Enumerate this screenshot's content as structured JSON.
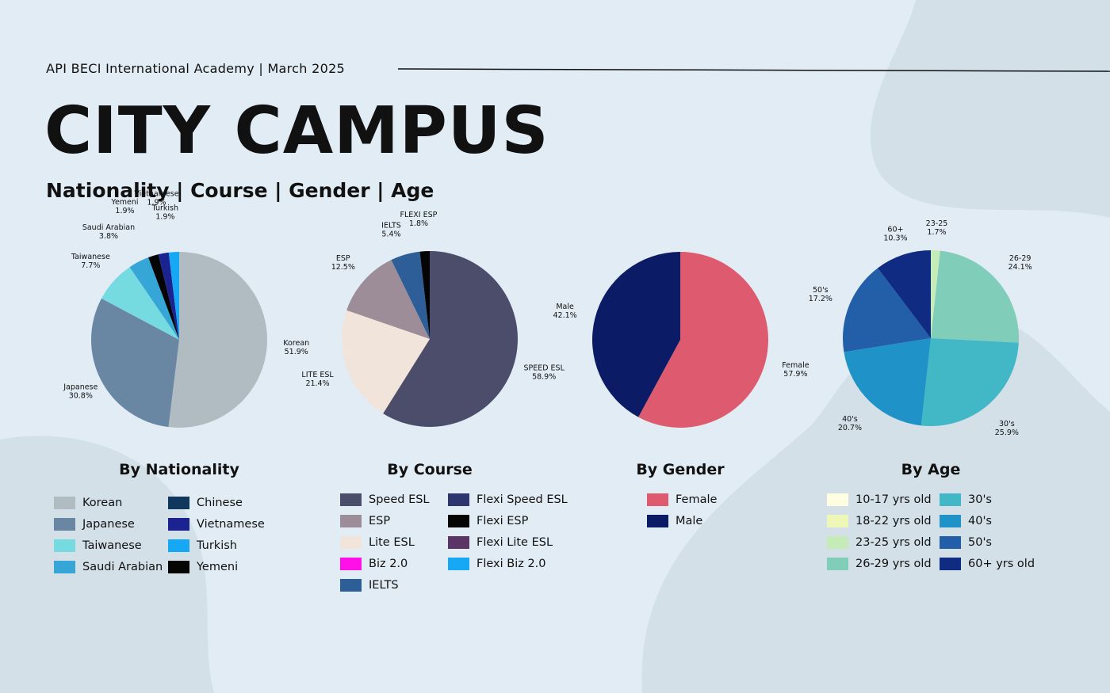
{
  "header": {
    "subtitle": "API BECI International Academy  |  March 2025",
    "title": "CITY CAMPUS",
    "heading": "Nationality | Course | Gender | Age"
  },
  "chart_data": [
    {
      "type": "pie",
      "title": "By Nationality",
      "slices": [
        {
          "label": "Korean",
          "value": 51.9,
          "pct": "51.9%",
          "color": "#b0bbc2"
        },
        {
          "label": "Japanese",
          "value": 30.8,
          "pct": "30.8%",
          "color": "#6986a3"
        },
        {
          "label": "Taiwanese",
          "value": 7.7,
          "pct": "7.7%",
          "color": "#76dbe0"
        },
        {
          "label": "Saudi Arabian",
          "value": 3.8,
          "pct": "3.8%",
          "color": "#35a6d6"
        },
        {
          "label": "Yemeni",
          "value": 1.9,
          "pct": "1.9%",
          "color": "#050505"
        },
        {
          "label": "Vietnamese",
          "value": 1.9,
          "pct": "1.9%",
          "color": "#1a2390"
        },
        {
          "label": "Turkish",
          "value": 1.9,
          "pct": "1.9%",
          "color": "#16a7f5"
        }
      ],
      "legend": [
        {
          "label": "Korean",
          "color": "#b0bbc2"
        },
        {
          "label": "Japanese",
          "color": "#6986a3"
        },
        {
          "label": "Taiwanese",
          "color": "#76dbe0"
        },
        {
          "label": "Saudi Arabian",
          "color": "#35a6d6"
        },
        {
          "label": "Chinese",
          "color": "#10385c"
        },
        {
          "label": "Vietnamese",
          "color": "#1a2390"
        },
        {
          "label": "Turkish",
          "color": "#16a7f5"
        },
        {
          "label": "Yemeni",
          "color": "#050505"
        }
      ]
    },
    {
      "type": "pie",
      "title": "By Course",
      "slices": [
        {
          "label": "SPEED ESL",
          "value": 58.9,
          "pct": "58.9%",
          "color": "#4b4d6a"
        },
        {
          "label": "LITE ESL",
          "value": 21.4,
          "pct": "21.4%",
          "color": "#f1e4da"
        },
        {
          "label": "ESP",
          "value": 12.5,
          "pct": "12.5%",
          "color": "#9d8d99"
        },
        {
          "label": "IELTS",
          "value": 5.4,
          "pct": "5.4%",
          "color": "#2e5e97"
        },
        {
          "label": "FLEXI ESP",
          "value": 1.8,
          "pct": "1.8%",
          "color": "#050505"
        }
      ],
      "legend": [
        {
          "label": "Speed ESL",
          "color": "#4b4d6a"
        },
        {
          "label": "ESP",
          "color": "#9d8d99"
        },
        {
          "label": "Lite ESL",
          "color": "#f1e4da"
        },
        {
          "label": "Biz 2.0",
          "color": "#ff10e8"
        },
        {
          "label": "IELTS",
          "color": "#2e5e97"
        },
        {
          "label": "Flexi Speed ESL",
          "color": "#2e346e"
        },
        {
          "label": "Flexi ESP",
          "color": "#050505"
        },
        {
          "label": "Flexi Lite ESL",
          "color": "#5a3566"
        },
        {
          "label": "Flexi Biz 2.0",
          "color": "#16a7f5"
        }
      ]
    },
    {
      "type": "pie",
      "title": "By Gender",
      "slices": [
        {
          "label": "Female",
          "value": 57.9,
          "pct": "57.9%",
          "color": "#de5a6e"
        },
        {
          "label": "Male",
          "value": 42.1,
          "pct": "42.1%",
          "color": "#0c1b66"
        }
      ],
      "legend": [
        {
          "label": "Female",
          "color": "#de5a6e"
        },
        {
          "label": "Male",
          "color": "#0c1b66"
        }
      ]
    },
    {
      "type": "pie",
      "title": "By Age",
      "slices": [
        {
          "label": "23-25",
          "value": 1.7,
          "pct": "1.7%",
          "color": "#c5ebb8"
        },
        {
          "label": "26-29",
          "value": 24.1,
          "pct": "24.1%",
          "color": "#80cdb9"
        },
        {
          "label": "30's",
          "value": 25.9,
          "pct": "25.9%",
          "color": "#42b8c7"
        },
        {
          "label": "40's",
          "value": 20.7,
          "pct": "20.7%",
          "color": "#1f93c7"
        },
        {
          "label": "50's",
          "value": 17.2,
          "pct": "17.2%",
          "color": "#225fa8"
        },
        {
          "label": "60+",
          "value": 10.3,
          "pct": "10.3%",
          "color": "#0f2b82"
        }
      ],
      "legend": [
        {
          "label": "10-17 yrs old",
          "color": "#fefee0"
        },
        {
          "label": "18-22 yrs old",
          "color": "#eef7b6"
        },
        {
          "label": "23-25 yrs old",
          "color": "#c5ebb8"
        },
        {
          "label": "26-29 yrs old",
          "color": "#80cdb9"
        },
        {
          "label": "30's",
          "color": "#42b8c7"
        },
        {
          "label": "40's",
          "color": "#1f93c7"
        },
        {
          "label": "50's",
          "color": "#225fa8"
        },
        {
          "label": "60+ yrs old",
          "color": "#0f2b82"
        }
      ]
    }
  ]
}
